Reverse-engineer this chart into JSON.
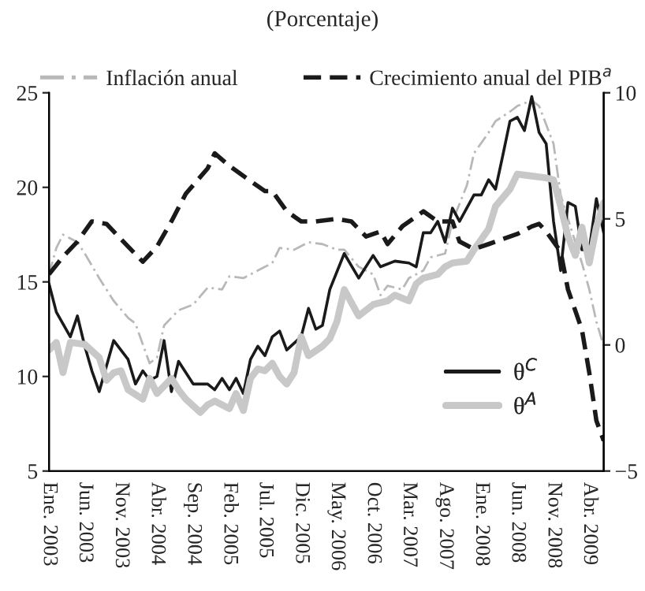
{
  "chart_data": {
    "type": "line",
    "title": "(Porcentaje)",
    "xlim": [
      "2003-01",
      "2009-06"
    ],
    "xticks": [
      {
        "value": "2003-01",
        "label": "Ene. 2003"
      },
      {
        "value": "2003-06",
        "label": "Jun. 2003"
      },
      {
        "value": "2003-11",
        "label": "Nov. 2003"
      },
      {
        "value": "2004-04",
        "label": "Abr. 2004"
      },
      {
        "value": "2004-09",
        "label": "Sep. 2004"
      },
      {
        "value": "2005-02",
        "label": "Feb. 2005"
      },
      {
        "value": "2005-07",
        "label": "Jul. 2005"
      },
      {
        "value": "2005-12",
        "label": "Dic. 2005"
      },
      {
        "value": "2006-05",
        "label": "May. 2006"
      },
      {
        "value": "2006-10",
        "label": "Oct. 2006"
      },
      {
        "value": "2007-03",
        "label": "Mar. 2007"
      },
      {
        "value": "2007-08",
        "label": "Ago. 2007"
      },
      {
        "value": "2008-01",
        "label": "Ene. 2008"
      },
      {
        "value": "2008-06",
        "label": "Jun. 2008"
      },
      {
        "value": "2008-11",
        "label": "Nov. 2008"
      },
      {
        "value": "2009-04",
        "label": "Abr. 2009"
      }
    ],
    "ylim": [
      5,
      25
    ],
    "yticks": [
      5,
      10,
      15,
      20,
      25
    ],
    "y2lim": [
      -5,
      10
    ],
    "y2ticks": [
      -5,
      0,
      5,
      10
    ],
    "legend": "top",
    "grid": false,
    "series": [
      {
        "name": "Inflación anual",
        "color": "#b8b8b8",
        "line_style": "dotted",
        "x": [
          "2003-01",
          "2003-02",
          "2003-03",
          "2003-05",
          "2003-06",
          "2003-08",
          "2003-10",
          "2003-12",
          "2004-01",
          "2004-02",
          "2004-03",
          "2004-04",
          "2004-05",
          "2004-07",
          "2004-09",
          "2004-11",
          "2005-01",
          "2005-02",
          "2005-04",
          "2005-06",
          "2005-08",
          "2005-09",
          "2005-11",
          "2006-01",
          "2006-03",
          "2006-05",
          "2006-06",
          "2006-08",
          "2006-10",
          "2006-11",
          "2006-12",
          "2007-02",
          "2007-03",
          "2007-05",
          "2007-06",
          "2007-08",
          "2007-09",
          "2007-11",
          "2007-12",
          "2008-02",
          "2008-03",
          "2008-05",
          "2008-06",
          "2008-08",
          "2008-09",
          "2008-11",
          "2008-12",
          "2009-02",
          "2009-03",
          "2009-04",
          "2009-05",
          "2009-06"
        ],
        "values": [
          15.4,
          16.8,
          17.5,
          17.1,
          16.5,
          15.2,
          14.0,
          13.1,
          12.8,
          11.7,
          10.7,
          11.0,
          12.7,
          13.5,
          13.8,
          14.7,
          14.6,
          15.3,
          15.2,
          15.6,
          16.0,
          16.8,
          16.7,
          17.1,
          17.0,
          16.7,
          16.7,
          15.8,
          15.4,
          14.3,
          14.8,
          14.6,
          15.2,
          15.6,
          16.3,
          16.5,
          18.2,
          20.1,
          21.8,
          22.9,
          23.5,
          24.0,
          24.3,
          24.6,
          24.3,
          22.3,
          19.6,
          17.1,
          16.0,
          14.6,
          12.9,
          11.6
        ]
      },
      {
        "name": "Crecimiento anual del PIB$^{a}$",
        "color": "#1a1a1a",
        "line_style": "dashed",
        "axis": "y2",
        "x": [
          "2003-01",
          "2003-03",
          "2003-05",
          "2003-07",
          "2003-09",
          "2003-12",
          "2004-02",
          "2004-04",
          "2004-06",
          "2004-08",
          "2004-11",
          "2004-12",
          "2005-02",
          "2005-04",
          "2005-07",
          "2005-08",
          "2005-10",
          "2005-12",
          "2006-02",
          "2006-05",
          "2006-07",
          "2006-09",
          "2006-11",
          "2006-12",
          "2007-02",
          "2007-05",
          "2007-07",
          "2007-09",
          "2007-10",
          "2007-12",
          "2008-02",
          "2008-04",
          "2008-06",
          "2008-08",
          "2008-09",
          "2008-10",
          "2008-12",
          "2009-01",
          "2009-03",
          "2009-04",
          "2009-05",
          "2009-06"
        ],
        "values": [
          2.8,
          3.5,
          4.1,
          4.9,
          4.8,
          3.9,
          3.3,
          3.9,
          4.9,
          6.0,
          7.0,
          7.6,
          7.1,
          6.7,
          6.1,
          6.1,
          5.3,
          4.9,
          4.9,
          5.0,
          4.9,
          4.3,
          4.5,
          4.0,
          4.7,
          5.3,
          4.9,
          4.9,
          4.1,
          3.8,
          4.0,
          4.2,
          4.4,
          4.7,
          4.8,
          4.5,
          3.7,
          2.2,
          0.6,
          -1.1,
          -3.0,
          -3.8
        ]
      },
      {
        "name": "θ$^{C}$",
        "color": "#1a1a1a",
        "line_style": "solid",
        "x": [
          "2003-01",
          "2003-02",
          "2003-04",
          "2003-05",
          "2003-06",
          "2003-07",
          "2003-08",
          "2003-10",
          "2003-12",
          "2004-01",
          "2004-02",
          "2004-03",
          "2004-04",
          "2004-05",
          "2004-06",
          "2004-07",
          "2004-09",
          "2004-11",
          "2004-12",
          "2005-01",
          "2005-02",
          "2005-03",
          "2005-04",
          "2005-05",
          "2005-06",
          "2005-07",
          "2005-08",
          "2005-09",
          "2005-10",
          "2005-12",
          "2006-01",
          "2006-02",
          "2006-03",
          "2006-04",
          "2006-06",
          "2006-08",
          "2006-10",
          "2006-11",
          "2007-01",
          "2007-03",
          "2007-04",
          "2007-05",
          "2007-06",
          "2007-07",
          "2007-08",
          "2007-09",
          "2007-10",
          "2007-12",
          "2008-01",
          "2008-02",
          "2008-03",
          "2008-04",
          "2008-05",
          "2008-06",
          "2008-07",
          "2008-08",
          "2008-09",
          "2008-10",
          "2008-11",
          "2008-12",
          "2009-01",
          "2009-02",
          "2009-03",
          "2009-04",
          "2009-05",
          "2009-06"
        ],
        "values": [
          14.9,
          13.4,
          12.1,
          13.2,
          11.6,
          10.3,
          9.2,
          11.9,
          10.9,
          9.6,
          10.3,
          9.8,
          10.0,
          11.9,
          9.2,
          10.8,
          9.6,
          9.6,
          9.3,
          9.9,
          9.3,
          9.9,
          9.1,
          10.9,
          11.6,
          11.1,
          12.1,
          12.4,
          11.4,
          12.1,
          13.6,
          12.5,
          12.7,
          14.6,
          16.5,
          15.2,
          16.4,
          15.8,
          16.1,
          16.0,
          15.8,
          17.6,
          17.6,
          18.2,
          17.1,
          18.9,
          18.2,
          19.6,
          19.6,
          20.4,
          19.9,
          21.7,
          23.5,
          23.7,
          23.0,
          24.8,
          22.9,
          22.3,
          18.2,
          15.6,
          19.2,
          19.0,
          16.7,
          16.7,
          19.4,
          17.6
        ]
      },
      {
        "name": "θ$^{A}$",
        "color": "#c8c8c8",
        "line_style": "solid",
        "x": [
          "2003-01",
          "2003-02",
          "2003-03",
          "2003-04",
          "2003-06",
          "2003-08",
          "2003-09",
          "2003-10",
          "2003-11",
          "2003-12",
          "2004-02",
          "2004-03",
          "2004-04",
          "2004-06",
          "2004-07",
          "2004-08",
          "2004-10",
          "2004-11",
          "2004-12",
          "2005-02",
          "2005-03",
          "2005-04",
          "2005-05",
          "2005-06",
          "2005-07",
          "2005-08",
          "2005-09",
          "2005-10",
          "2005-11",
          "2005-12",
          "2006-01",
          "2006-03",
          "2006-04",
          "2006-05",
          "2006-06",
          "2006-08",
          "2006-10",
          "2006-12",
          "2007-01",
          "2007-03",
          "2007-04",
          "2007-05",
          "2007-07",
          "2007-08",
          "2007-09",
          "2007-11",
          "2007-12",
          "2008-02",
          "2008-03",
          "2008-05",
          "2008-06",
          "2008-08",
          "2008-10",
          "2008-11",
          "2008-12",
          "2009-01",
          "2009-02",
          "2009-03",
          "2009-04",
          "2009-05",
          "2009-06"
        ],
        "values": [
          11.4,
          11.8,
          10.2,
          11.8,
          11.7,
          11.0,
          9.8,
          10.2,
          10.3,
          9.3,
          8.8,
          9.9,
          9.1,
          9.9,
          9.3,
          8.8,
          8.1,
          8.5,
          8.7,
          8.3,
          9.1,
          8.2,
          9.9,
          10.4,
          10.3,
          10.7,
          10.0,
          9.6,
          10.2,
          12.1,
          11.1,
          11.6,
          12.0,
          12.9,
          14.6,
          13.2,
          13.8,
          14.0,
          14.3,
          14.0,
          14.9,
          15.2,
          15.4,
          15.8,
          16.0,
          16.1,
          16.7,
          17.8,
          19.0,
          19.9,
          20.7,
          20.6,
          20.5,
          20.4,
          19.0,
          17.4,
          16.4,
          17.9,
          16.0,
          17.9,
          19.2
        ]
      }
    ]
  }
}
